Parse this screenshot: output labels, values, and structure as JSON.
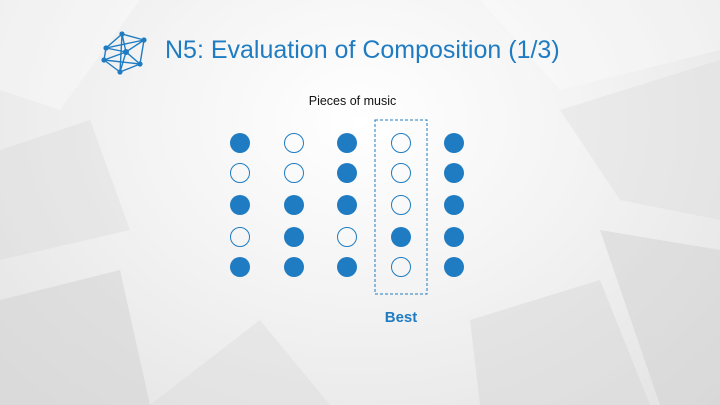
{
  "slide": {
    "title": "N5: Evaluation of Composition (1/3)",
    "subtitle": "Pieces of music",
    "best_label": "Best",
    "accent_color": "#1f7cc2",
    "logo_icon": "network-logo-icon"
  },
  "grid": {
    "columns": [
      [
        true,
        false,
        true,
        false,
        true
      ],
      [
        false,
        false,
        true,
        true,
        true
      ],
      [
        true,
        true,
        true,
        false,
        true
      ],
      [
        false,
        false,
        false,
        true,
        false
      ],
      [
        true,
        true,
        true,
        true,
        true
      ]
    ],
    "highlighted_column": 3
  }
}
